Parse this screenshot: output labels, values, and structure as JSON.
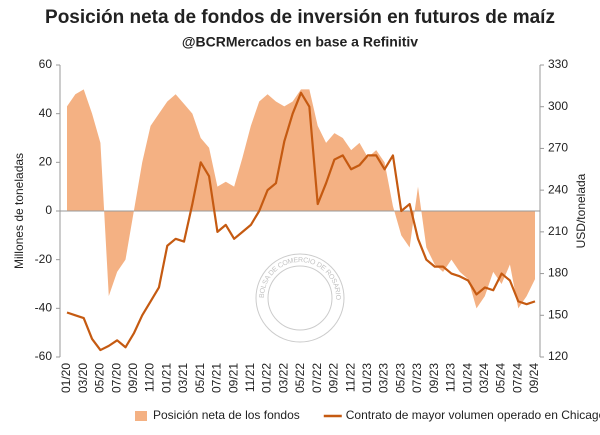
{
  "chart_data": {
    "type": "combo",
    "title": "Posición neta de fondos de inversión en futuros de maíz",
    "subtitle": "@BCRMercados en base a Refinitiv",
    "watermark": "BOLSA DE COMERCIO DE ROSARIO",
    "ylabel": "Millones de toneladas",
    "y2label": "USD/tonelada",
    "categories": [
      "01/20",
      null,
      "03/20",
      null,
      "05/20",
      null,
      "07/20",
      null,
      "09/20",
      null,
      "11/20",
      null,
      "01/21",
      null,
      "03/21",
      null,
      "05/21",
      null,
      "07/21",
      null,
      "09/21",
      null,
      "11/21",
      null,
      "01/22",
      null,
      "03/22",
      null,
      "05/22",
      null,
      "07/22",
      null,
      "09/22",
      null,
      "11/22",
      null,
      "01/23",
      null,
      "03/23",
      null,
      "05/23",
      null,
      "07/23",
      null,
      "09/23",
      null,
      "11/23",
      null,
      "01/24",
      null,
      "03/24",
      null,
      "05/24",
      null,
      "07/24",
      null,
      "09/24"
    ],
    "ylim": [
      -60,
      60
    ],
    "yticks": [
      -60,
      -40,
      -20,
      0,
      20,
      40,
      60
    ],
    "y2lim": [
      120,
      330
    ],
    "y2ticks": [
      120,
      150,
      180,
      210,
      240,
      270,
      300,
      330
    ],
    "series": [
      {
        "name": "Posición neta de los fondos",
        "type": "area",
        "color": "#f4b183",
        "values": [
          43,
          48,
          50,
          40,
          28,
          -35,
          -25,
          -20,
          0,
          20,
          35,
          40,
          45,
          48,
          44,
          40,
          30,
          26,
          10,
          12,
          10,
          22,
          35,
          45,
          48,
          45,
          43,
          45,
          50,
          50,
          35,
          28,
          32,
          30,
          25,
          28,
          22,
          25,
          20,
          2,
          -10,
          -15,
          10,
          -15,
          -22,
          -25,
          -20,
          -25,
          -28,
          -40,
          -35,
          -25,
          -30,
          -22,
          -40,
          -35,
          -28
        ]
      },
      {
        "name": "Contrato de mayor volumen operado en Chicago",
        "type": "line",
        "axis": "y2",
        "color": "#c55a11",
        "values": [
          152,
          150,
          148,
          133,
          125,
          128,
          132,
          127,
          137,
          150,
          160,
          170,
          200,
          205,
          203,
          230,
          260,
          250,
          210,
          215,
          205,
          210,
          215,
          225,
          240,
          245,
          275,
          295,
          310,
          300,
          230,
          245,
          262,
          265,
          255,
          258,
          265,
          265,
          255,
          265,
          225,
          230,
          205,
          190,
          185,
          185,
          180,
          178,
          175,
          165,
          170,
          168,
          180,
          175,
          160,
          158,
          160
        ]
      }
    ]
  }
}
